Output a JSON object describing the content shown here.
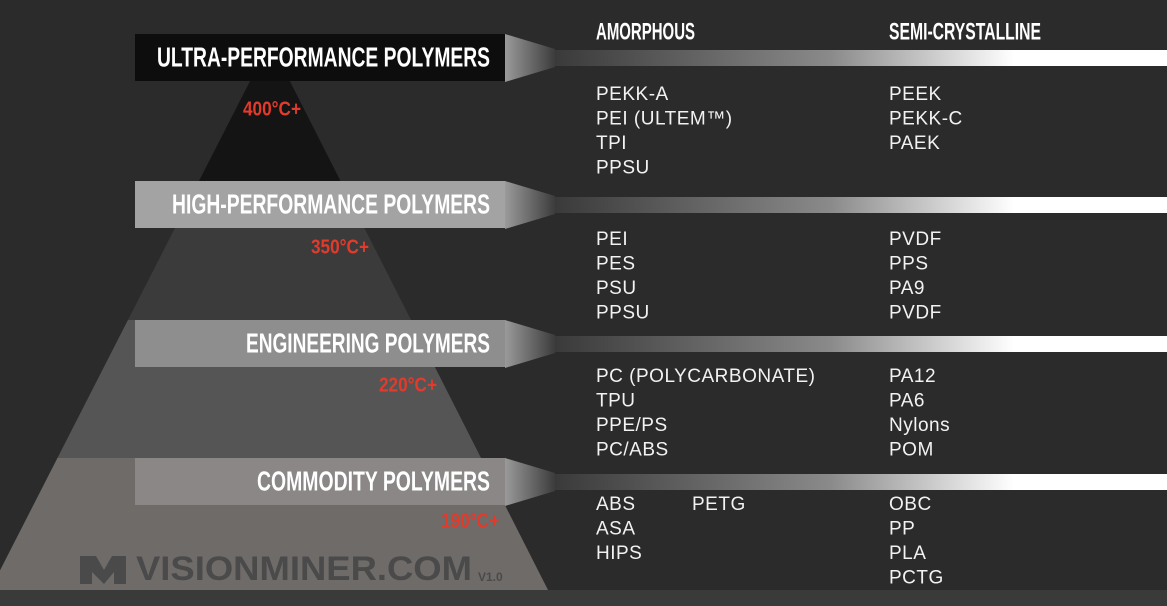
{
  "headers": {
    "amorphous": "AMORPHOUS",
    "semi_crystalline": "SEMI-CRYSTALLINE"
  },
  "tiers": [
    {
      "name": "ULTRA-PERFORMANCE POLYMERS",
      "temperature": "400°C+",
      "amorphous": [
        "PEKK-A",
        "PEI (ULTEM™)",
        "TPI",
        "PPSU"
      ],
      "semi_crystalline": [
        "PEEK",
        "PEKK-C",
        "PAEK"
      ]
    },
    {
      "name": "HIGH-PERFORMANCE POLYMERS",
      "temperature": "350°C+",
      "amorphous": [
        "PEI",
        "PES",
        "PSU",
        "PPSU"
      ],
      "semi_crystalline": [
        "PVDF",
        "PPS",
        "PA9",
        "PVDF"
      ]
    },
    {
      "name": "ENGINEERING POLYMERS",
      "temperature": "220°C+",
      "amorphous": [
        "PC (POLYCARBONATE)",
        "TPU",
        "PPE/PS",
        "PC/ABS"
      ],
      "semi_crystalline": [
        "PA12",
        "PA6",
        "Nylons",
        "POM"
      ]
    },
    {
      "name": "COMMODITY POLYMERS",
      "temperature": "190°C+",
      "amorphous": [
        "ABS",
        "ASA",
        "HIPS",
        "PETG"
      ],
      "semi_crystalline": [
        "OBC",
        "PP",
        "PLA",
        "PCTG"
      ]
    }
  ],
  "watermark": {
    "brand": "VISIONMINER.COM",
    "version": "V1.0"
  }
}
